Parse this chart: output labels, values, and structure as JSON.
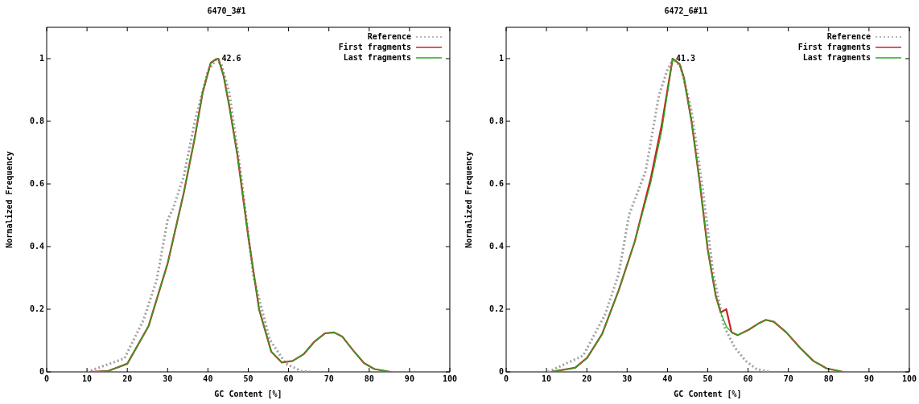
{
  "chart_data": [
    {
      "type": "line",
      "title": "6470_3#1",
      "xlabel": "GC Content [%]",
      "ylabel": "Normalized Frequency",
      "xlim": [
        0,
        100
      ],
      "ylim": [
        0,
        1.1
      ],
      "xticks": [
        0,
        10,
        20,
        30,
        40,
        50,
        60,
        70,
        80,
        90,
        100
      ],
      "yticks": [
        0,
        0.2,
        0.4,
        0.6,
        0.8,
        1
      ],
      "grid": false,
      "legend": "top right",
      "annotations": [
        {
          "text": "42.6",
          "x": 42.6,
          "y": 1.0
        }
      ],
      "series": [
        {
          "name": "Reference",
          "color": "#a0a0a0",
          "line_style": "dotted",
          "x": [
            10,
            19.3,
            24,
            27.3,
            30,
            31.3,
            34,
            36.7,
            40,
            42,
            43.3,
            45.3,
            48,
            51.3,
            55.3,
            59.3,
            63.3,
            65.3
          ],
          "values": [
            0,
            0.043,
            0.165,
            0.294,
            0.485,
            0.52,
            0.623,
            0.797,
            0.961,
            0.996,
            0.983,
            0.892,
            0.649,
            0.303,
            0.104,
            0.026,
            0.002,
            0
          ]
        },
        {
          "name": "First fragments",
          "color": "#cc2222",
          "line_style": "solid",
          "x": [
            10.7,
            15.3,
            20,
            25.3,
            30,
            34,
            36.7,
            38.7,
            40.7,
            42,
            42.6,
            43.9,
            45.3,
            47.3,
            50,
            52.7,
            55.7,
            58.3,
            61,
            63.7,
            66.3,
            69,
            71.3,
            73.3,
            76,
            78.7,
            81.3,
            85.3
          ],
          "values": [
            0,
            0.003,
            0.026,
            0.147,
            0.346,
            0.571,
            0.745,
            0.892,
            0.987,
            0.998,
            1.0,
            0.944,
            0.848,
            0.693,
            0.433,
            0.199,
            0.065,
            0.03,
            0.035,
            0.056,
            0.095,
            0.123,
            0.126,
            0.113,
            0.069,
            0.028,
            0.009,
            0
          ]
        },
        {
          "name": "Last fragments",
          "color": "#22aa22",
          "line_style": "solid",
          "x": [
            10.7,
            15.3,
            20,
            25.3,
            30,
            34,
            36.7,
            38.7,
            40.7,
            42,
            42.6,
            43.9,
            45.3,
            47.3,
            50,
            52.7,
            55.7,
            58.3,
            61,
            63.7,
            66.3,
            69,
            71.3,
            73.3,
            76,
            78.7,
            81.3,
            85.3
          ],
          "values": [
            0,
            0.003,
            0.026,
            0.147,
            0.346,
            0.571,
            0.745,
            0.892,
            0.987,
            0.998,
            1.0,
            0.944,
            0.848,
            0.693,
            0.433,
            0.199,
            0.065,
            0.03,
            0.035,
            0.056,
            0.095,
            0.123,
            0.126,
            0.113,
            0.069,
            0.028,
            0.009,
            0
          ]
        }
      ]
    },
    {
      "type": "line",
      "title": "6472_6#11",
      "xlabel": "GC Content [%]",
      "ylabel": "Normalized Frequency",
      "xlim": [
        0,
        100
      ],
      "ylim": [
        0,
        1.1
      ],
      "xticks": [
        0,
        10,
        20,
        30,
        40,
        50,
        60,
        70,
        80,
        90,
        100
      ],
      "yticks": [
        0,
        0.2,
        0.4,
        0.6,
        0.8,
        1
      ],
      "grid": false,
      "legend": "top right",
      "annotations": [
        {
          "text": "41.3",
          "x": 41.3,
          "y": 1.0
        }
      ],
      "series": [
        {
          "name": "Reference",
          "color": "#a0a0a0",
          "line_style": "dotted",
          "x": [
            10.4,
            19.1,
            24.5,
            27.9,
            30.5,
            34.6,
            37.9,
            39.9,
            41.4,
            43.3,
            46,
            48.7,
            51.3,
            54,
            56.7,
            59.4,
            62.1,
            65.4
          ],
          "values": [
            0,
            0.052,
            0.182,
            0.312,
            0.502,
            0.641,
            0.883,
            0.961,
            1.0,
            0.974,
            0.831,
            0.589,
            0.32,
            0.147,
            0.078,
            0.035,
            0.009,
            0
          ]
        },
        {
          "name": "First fragments",
          "color": "#cc2222",
          "line_style": "solid",
          "x": [
            11.1,
            17.1,
            20.1,
            23.8,
            27.9,
            31.9,
            35.9,
            38.6,
            41.3,
            43,
            44.1,
            46,
            48,
            50,
            52,
            53.2,
            54.6,
            55.9,
            57.4,
            60.1,
            62.8,
            64.4,
            66.4,
            69.5,
            72.8,
            76.2,
            79.5,
            83.6
          ],
          "values": [
            0,
            0.013,
            0.045,
            0.121,
            0.26,
            0.416,
            0.62,
            0.79,
            1.0,
            0.983,
            0.939,
            0.797,
            0.606,
            0.39,
            0.242,
            0.19,
            0.2,
            0.126,
            0.117,
            0.134,
            0.156,
            0.166,
            0.16,
            0.126,
            0.078,
            0.035,
            0.011,
            0
          ]
        },
        {
          "name": "Last fragments",
          "color": "#22aa22",
          "line_style": "solid",
          "x": [
            11.1,
            17.1,
            20.1,
            23.8,
            27.9,
            31.9,
            35.9,
            38.6,
            41.3,
            43,
            44.1,
            46,
            48,
            50,
            52,
            53.4,
            54.7,
            56,
            57.4,
            60.1,
            62.8,
            64.4,
            66.4,
            69.5,
            72.8,
            76.2,
            79.5,
            83.6
          ],
          "values": [
            0,
            0.013,
            0.045,
            0.121,
            0.26,
            0.416,
            0.606,
            0.771,
            1.0,
            0.983,
            0.939,
            0.797,
            0.606,
            0.39,
            0.242,
            0.182,
            0.143,
            0.126,
            0.117,
            0.134,
            0.156,
            0.166,
            0.16,
            0.126,
            0.078,
            0.035,
            0.011,
            0
          ]
        }
      ]
    }
  ]
}
